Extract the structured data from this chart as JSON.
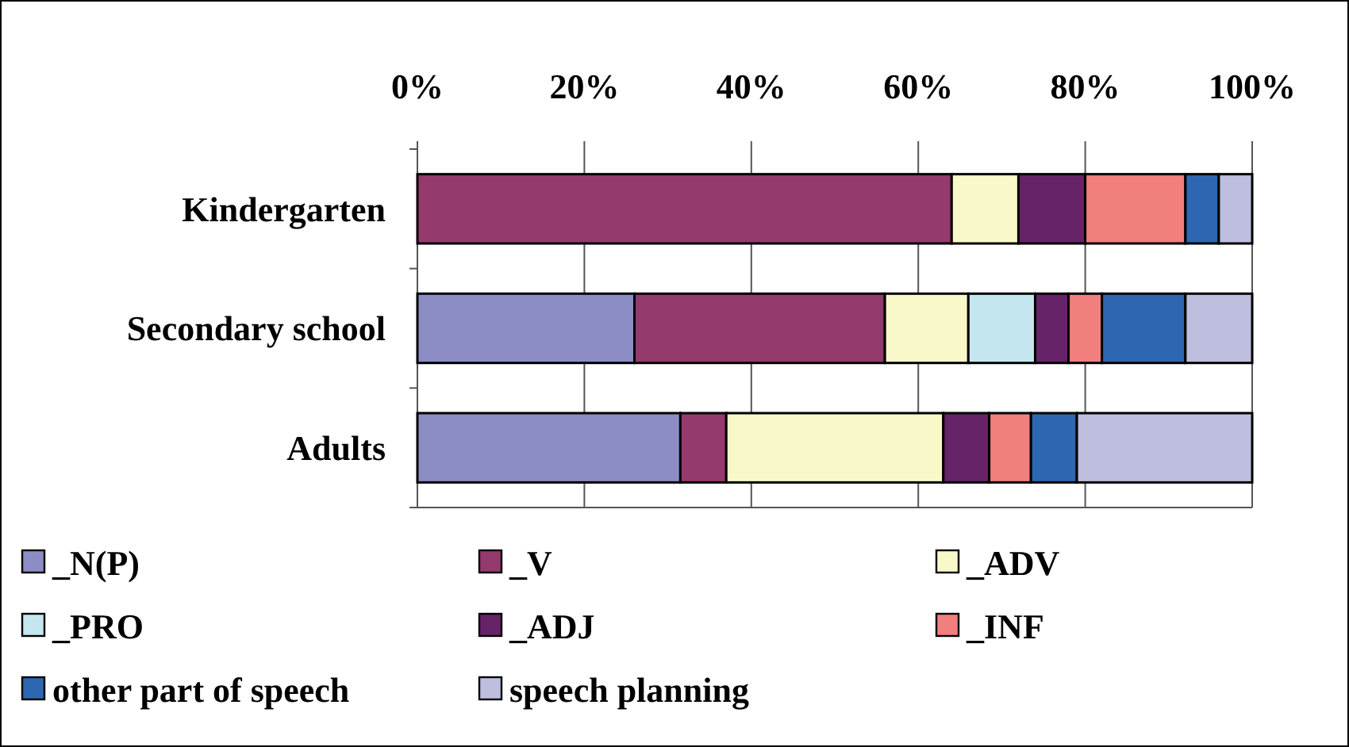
{
  "chart_data": {
    "type": "bar",
    "orientation": "horizontal",
    "stacked": true,
    "categories": [
      "Kindergarten",
      "Secondary school",
      "Adults"
    ],
    "series": [
      {
        "name": "_N(P)",
        "color": "#8b8dc4",
        "values": [
          0,
          26,
          31.5
        ]
      },
      {
        "name": "_V",
        "color": "#953a6d",
        "values": [
          64,
          30,
          5.5
        ]
      },
      {
        "name": "_ADV",
        "color": "#f8f8c8",
        "values": [
          8,
          10,
          26
        ]
      },
      {
        "name": "_PRO",
        "color": "#c4e6ef",
        "values": [
          0,
          8,
          0
        ]
      },
      {
        "name": "_ADJ",
        "color": "#672368",
        "values": [
          8,
          4,
          5.5
        ]
      },
      {
        "name": "_INF",
        "color": "#f17f7e",
        "values": [
          12,
          4,
          5
        ]
      },
      {
        "name": "other part of speech",
        "color": "#2d67b1",
        "values": [
          4,
          10,
          5.5
        ]
      },
      {
        "name": "speech planning",
        "color": "#bebede",
        "values": [
          4,
          8,
          21
        ]
      }
    ],
    "xlim": [
      0,
      100
    ],
    "xticks": [
      {
        "value": 0,
        "label": "0%"
      },
      {
        "value": 20,
        "label": "20%"
      },
      {
        "value": 40,
        "label": "40%"
      },
      {
        "value": 60,
        "label": "60%"
      },
      {
        "value": 80,
        "label": "80%"
      },
      {
        "value": 100,
        "label": "100%"
      }
    ],
    "grid": "x",
    "legend": "bottom"
  }
}
